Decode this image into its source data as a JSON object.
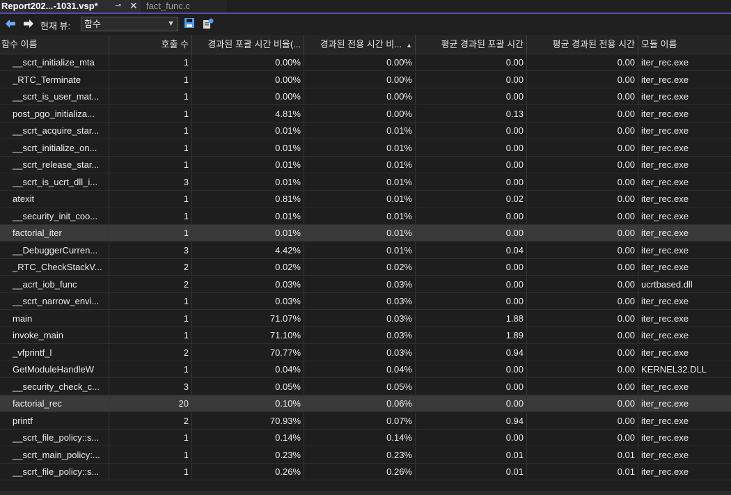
{
  "tabs": {
    "active": "Report202...-1031.vsp*",
    "active_pin": "⊸",
    "active_close": "✕",
    "inactive": "fact_func.c"
  },
  "toolbar": {
    "view_label": "현재 뷰:",
    "view_value": "함수",
    "back_icon": "back-arrow-icon",
    "forward_icon": "forward-arrow-icon",
    "save_icon": "save-icon",
    "export_icon": "export-icon"
  },
  "columns": [
    "함수 이름",
    "호출 수",
    "경과된 포괄 시간 비율(...",
    "경과된 전용 시간 비...",
    "평균 경과된 포괄 시간",
    "평균 경과된 전용 시간",
    "모듈 이름"
  ],
  "sorted_column_index": 3,
  "rows": [
    [
      "__scrt_initialize_mta",
      "1",
      "0.00%",
      "0.00%",
      "0.00",
      "0.00",
      "iter_rec.exe"
    ],
    [
      "_RTC_Terminate",
      "1",
      "0.00%",
      "0.00%",
      "0.00",
      "0.00",
      "iter_rec.exe"
    ],
    [
      "__scrt_is_user_mat...",
      "1",
      "0.00%",
      "0.00%",
      "0.00",
      "0.00",
      "iter_rec.exe"
    ],
    [
      "post_pgo_initializa...",
      "1",
      "4.81%",
      "0.00%",
      "0.13",
      "0.00",
      "iter_rec.exe"
    ],
    [
      "__scrt_acquire_star...",
      "1",
      "0.01%",
      "0.01%",
      "0.00",
      "0.00",
      "iter_rec.exe"
    ],
    [
      "__scrt_initialize_on...",
      "1",
      "0.01%",
      "0.01%",
      "0.00",
      "0.00",
      "iter_rec.exe"
    ],
    [
      "__scrt_release_star...",
      "1",
      "0.01%",
      "0.01%",
      "0.00",
      "0.00",
      "iter_rec.exe"
    ],
    [
      "__scrt_is_ucrt_dll_i...",
      "3",
      "0.01%",
      "0.01%",
      "0.00",
      "0.00",
      "iter_rec.exe"
    ],
    [
      "atexit",
      "1",
      "0.81%",
      "0.01%",
      "0.02",
      "0.00",
      "iter_rec.exe"
    ],
    [
      "__security_init_coo...",
      "1",
      "0.01%",
      "0.01%",
      "0.00",
      "0.00",
      "iter_rec.exe"
    ],
    [
      "factorial_iter",
      "1",
      "0.01%",
      "0.01%",
      "0.00",
      "0.00",
      "iter_rec.exe"
    ],
    [
      "__DebuggerCurren...",
      "3",
      "4.42%",
      "0.01%",
      "0.04",
      "0.00",
      "iter_rec.exe"
    ],
    [
      "_RTC_CheckStackV...",
      "2",
      "0.02%",
      "0.02%",
      "0.00",
      "0.00",
      "iter_rec.exe"
    ],
    [
      "__acrt_iob_func",
      "2",
      "0.03%",
      "0.03%",
      "0.00",
      "0.00",
      "ucrtbased.dll"
    ],
    [
      "__scrt_narrow_envi...",
      "1",
      "0.03%",
      "0.03%",
      "0.00",
      "0.00",
      "iter_rec.exe"
    ],
    [
      "main",
      "1",
      "71.07%",
      "0.03%",
      "1.88",
      "0.00",
      "iter_rec.exe"
    ],
    [
      "invoke_main",
      "1",
      "71.10%",
      "0.03%",
      "1.89",
      "0.00",
      "iter_rec.exe"
    ],
    [
      "_vfprintf_l",
      "2",
      "70.77%",
      "0.03%",
      "0.94",
      "0.00",
      "iter_rec.exe"
    ],
    [
      "GetModuleHandleW",
      "1",
      "0.04%",
      "0.04%",
      "0.00",
      "0.00",
      "KERNEL32.DLL"
    ],
    [
      "__security_check_c...",
      "3",
      "0.05%",
      "0.05%",
      "0.00",
      "0.00",
      "iter_rec.exe"
    ],
    [
      "factorial_rec",
      "20",
      "0.10%",
      "0.06%",
      "0.00",
      "0.00",
      "iter_rec.exe"
    ],
    [
      "printf",
      "2",
      "70.93%",
      "0.07%",
      "0.94",
      "0.00",
      "iter_rec.exe"
    ],
    [
      "__scrt_file_policy::s...",
      "1",
      "0.14%",
      "0.14%",
      "0.00",
      "0.00",
      "iter_rec.exe"
    ],
    [
      "__scrt_main_policy:...",
      "1",
      "0.23%",
      "0.23%",
      "0.01",
      "0.01",
      "iter_rec.exe"
    ],
    [
      "__scrt_file_policy::s...",
      "1",
      "0.26%",
      "0.26%",
      "0.01",
      "0.01",
      "iter_rec.exe"
    ]
  ],
  "selected_rows": [
    10,
    20
  ],
  "colors": {
    "tab_accent": "#5b4bb5",
    "back_arrow": "#6ea6ff",
    "save_icon": "#4e9cf0",
    "selected_row": "#3a3a3a"
  }
}
